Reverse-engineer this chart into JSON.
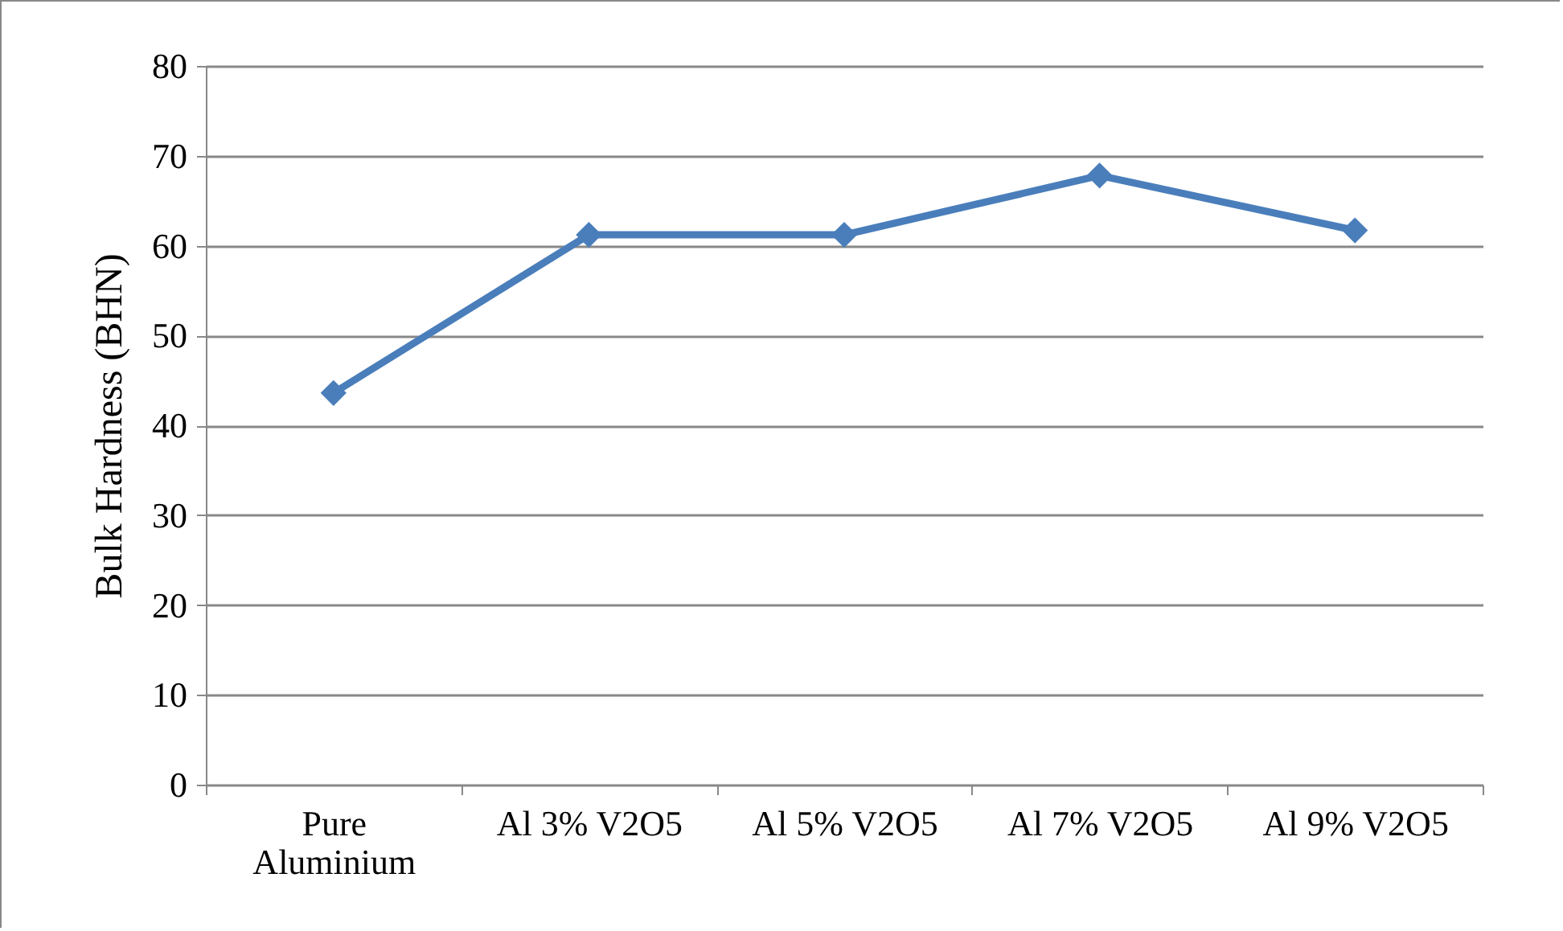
{
  "chart_data": {
    "type": "line",
    "ylabel": "Bulk Hardness (BHN)",
    "categories": [
      "Pure Aluminium",
      "Al 3% V2O5",
      "Al 5% V2O5",
      "Al 7% V2O5",
      "Al 9% V2O5"
    ],
    "series": [
      {
        "color": "#4a7ebb",
        "values": [
          43.6,
          61.2,
          61.2,
          67.8,
          61.7
        ]
      }
    ],
    "ylim": [
      0,
      80
    ],
    "yticks": [
      0,
      10,
      20,
      30,
      40,
      50,
      60,
      70,
      80
    ],
    "grid": "y",
    "marker": "diamond",
    "line_style": "solid",
    "legend": false
  }
}
